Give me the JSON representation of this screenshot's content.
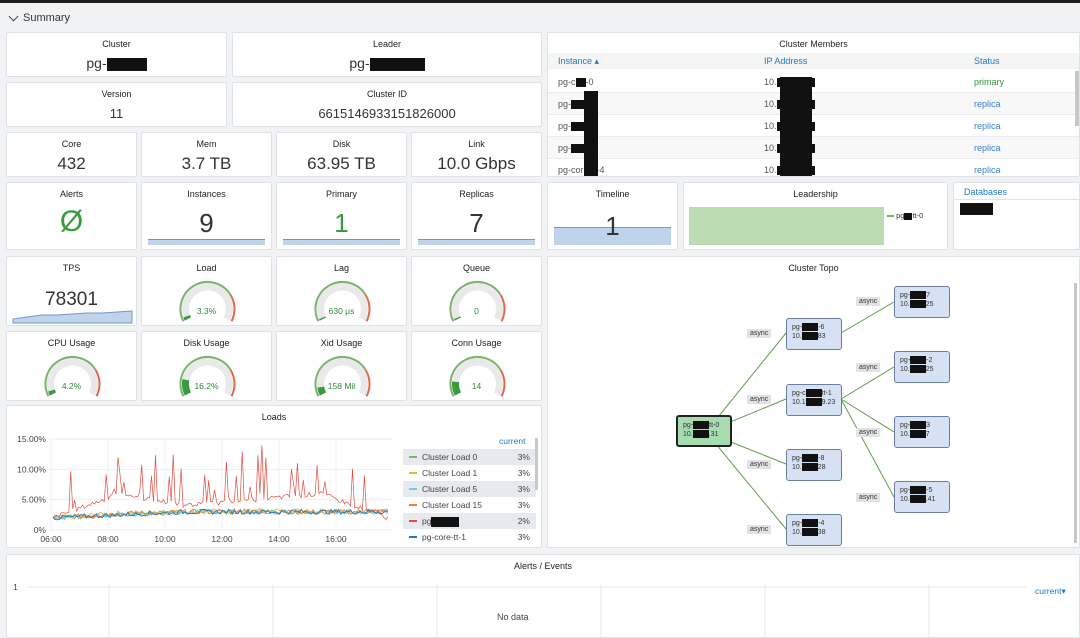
{
  "section": {
    "title": "Summary"
  },
  "stats": {
    "cluster": {
      "title": "Cluster",
      "value_prefix": "pg-"
    },
    "leader": {
      "title": "Leader",
      "value_prefix": "pg-"
    },
    "version": {
      "title": "Version",
      "value": "11"
    },
    "cluster_id": {
      "title": "Cluster ID",
      "value": "6615146933151826000"
    },
    "core": {
      "title": "Core",
      "value": "432"
    },
    "mem": {
      "title": "Mem",
      "value": "3.7 TB"
    },
    "disk": {
      "title": "Disk",
      "value": "63.95 TB"
    },
    "link": {
      "title": "Link",
      "value": "10.0 Gbps"
    },
    "alerts": {
      "title": "Alerts",
      "value": "Ø"
    },
    "instances": {
      "title": "Instances",
      "value": "9"
    },
    "primary": {
      "title": "Primary",
      "value": "1"
    },
    "replicas": {
      "title": "Replicas",
      "value": "7"
    },
    "timeline": {
      "title": "Timeline",
      "value": "1"
    },
    "leadership": {
      "title": "Leadership",
      "legend_prefix": "pg",
      "legend_suffix": "tt-0"
    },
    "databases": {
      "title": "Databases"
    },
    "tps": {
      "title": "TPS",
      "value": "78301"
    }
  },
  "gauges": [
    {
      "title": "Load",
      "value": "3.3%",
      "fraction": 0.033
    },
    {
      "title": "Lag",
      "value": "630 μs",
      "fraction": 0.0
    },
    {
      "title": "Queue",
      "value": "0",
      "fraction": 0.0
    },
    {
      "title": "CPU Usage",
      "value": "4.2%",
      "fraction": 0.042
    },
    {
      "title": "Disk Usage",
      "value": "16.2%",
      "fraction": 0.162
    },
    {
      "title": "Xid Usage",
      "value": "158 Mil",
      "fraction": 0.08
    },
    {
      "title": "Conn Usage",
      "value": "14",
      "fraction": 0.14
    }
  ],
  "members": {
    "title": "Cluster Members",
    "headers": {
      "instance": "Instance ▴",
      "ip": "IP Address",
      "status": "Status"
    },
    "rows": [
      {
        "instance": "pg-c",
        "suffix": "-0",
        "ip": "10.",
        "status": "primary"
      },
      {
        "instance": "pg-",
        "suffix": "-1",
        "ip": "10.",
        "status": "replica"
      },
      {
        "instance": "pg-",
        "suffix": "-2",
        "ip": "10.",
        "status": "replica"
      },
      {
        "instance": "pg-",
        "suffix": "-3",
        "ip": "10.",
        "status": "replica"
      },
      {
        "instance": "pg-core-tt-4",
        "suffix": "",
        "ip": "10.",
        "status": "replica"
      }
    ],
    "colors": {
      "primary": "#2f9a3a",
      "replica": "#3c7fc8"
    }
  },
  "loads": {
    "title": "Loads",
    "legend_header": "current",
    "legend": [
      {
        "name": "Cluster Load 0",
        "value": "3%",
        "color": "#7eb26d",
        "selected": true
      },
      {
        "name": "Cluster Load 1",
        "value": "3%",
        "color": "#eab839",
        "selected": false
      },
      {
        "name": "Cluster Load 5",
        "value": "3%",
        "color": "#6ed0e0",
        "selected": true
      },
      {
        "name": "Cluster Load 15",
        "value": "3%",
        "color": "#ef843c",
        "selected": false
      },
      {
        "name": "pg",
        "value": "2%",
        "color": "#e24d42",
        "selected": true
      },
      {
        "name": "pg-core-tt-1",
        "value": "3%",
        "color": "#1f78c1",
        "selected": false
      }
    ]
  },
  "chart_data": {
    "type": "line",
    "title": "Loads",
    "x": [
      "06:00",
      "08:00",
      "10:00",
      "12:00",
      "14:00",
      "16:00"
    ],
    "yticks": [
      "0%",
      "5.00%",
      "10.00%",
      "15.00%"
    ],
    "ylim": [
      0,
      15
    ],
    "series": [
      {
        "name": "Cluster Load 0",
        "values": [
          2,
          2.5,
          3,
          3,
          3,
          3
        ]
      },
      {
        "name": "Cluster Load 1",
        "values": [
          2,
          2.8,
          3,
          3.2,
          3.1,
          3
        ]
      },
      {
        "name": "Cluster Load 5",
        "values": [
          2,
          2.6,
          3,
          3,
          3,
          3
        ]
      },
      {
        "name": "Cluster Load 15",
        "values": [
          2,
          2.7,
          3,
          3,
          3,
          3
        ]
      },
      {
        "name": "pg",
        "values": [
          2,
          6,
          4,
          5,
          6,
          2
        ]
      },
      {
        "name": "pg-core-tt-1",
        "values": [
          2,
          2.5,
          3,
          3,
          3,
          3
        ]
      }
    ]
  },
  "topo": {
    "title": "Cluster Topo",
    "edge_label": "async",
    "primary": {
      "line1": "pg-",
      "line1b": "tt-0",
      "line2": "10.",
      "line2b": ".31"
    },
    "nodes": [
      {
        "line1": "pg-",
        "line1b": "-6",
        "line2": "10.",
        "line2b": "83"
      },
      {
        "line1": "pg-c",
        "line1b": "tt-1",
        "line2": "10.1",
        "line2b": "9.23"
      },
      {
        "line1": "pg-",
        "line1b": "-8",
        "line2": "10.",
        "line2b": "28"
      },
      {
        "line1": "pg-",
        "line1b": "-4",
        "line2": "10.",
        "line2b": "38"
      },
      {
        "line1": "pg-",
        "line1b": "7",
        "line2": "10.",
        "line2b": "25"
      },
      {
        "line1": "pg-",
        "line1b": "-2",
        "line2": "10.",
        "line2b": "25"
      },
      {
        "line1": "pg-",
        "line1b": "3",
        "line2": "10.",
        "line2b": "7"
      },
      {
        "line1": "pg-",
        "line1b": "-5",
        "line2": "10.",
        "line2b": ".41"
      }
    ]
  },
  "alerts_panel": {
    "title": "Alerts / Events",
    "ytick": "1",
    "no_data": "No data",
    "legend_header": "current▾"
  }
}
